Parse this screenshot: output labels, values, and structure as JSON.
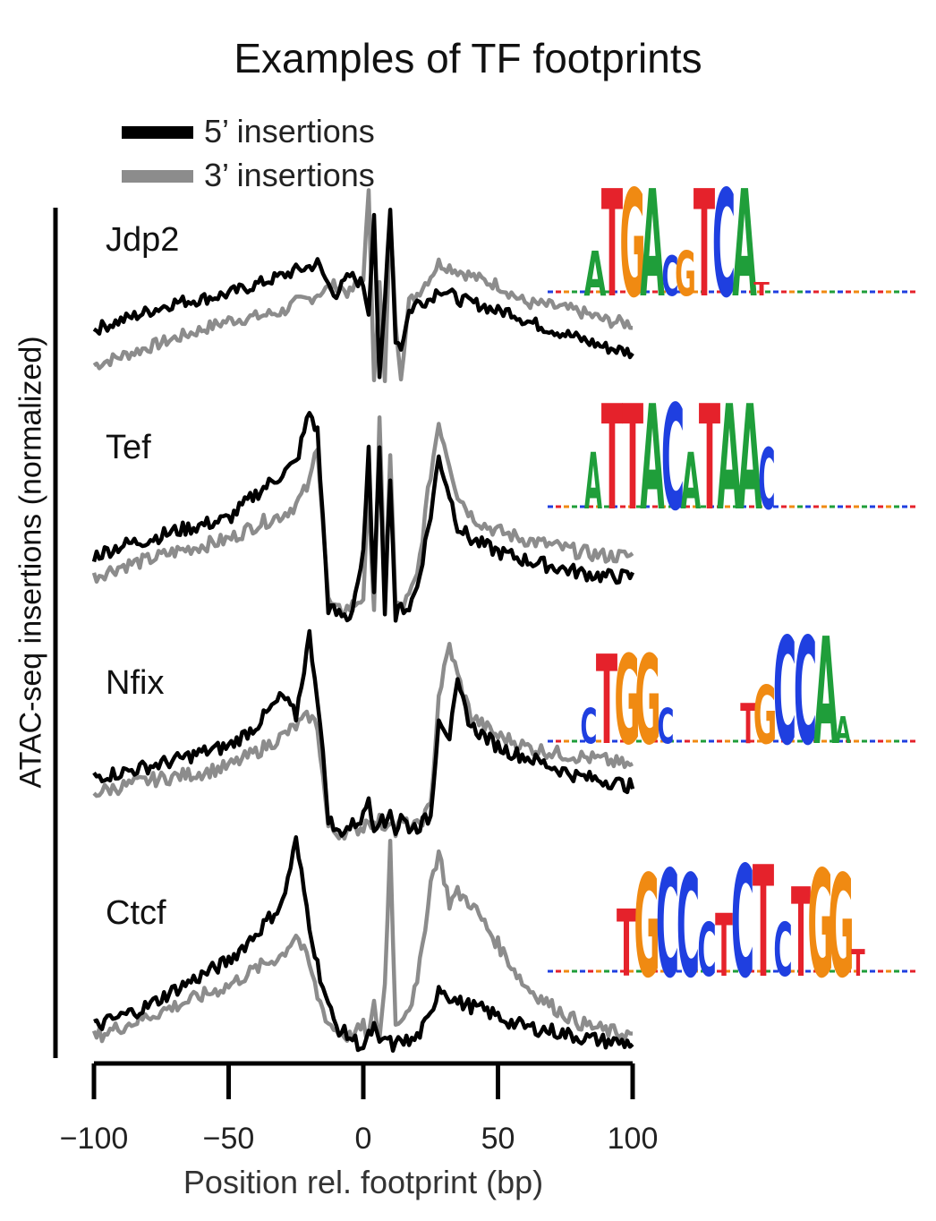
{
  "chart_data": {
    "type": "line",
    "title": "Examples of TF footprints",
    "xlabel": "Position rel. footprint (bp)",
    "ylabel": "ATAC-seq insertions (normalized)",
    "xlim": [
      -100,
      100
    ],
    "xticks": [
      -100,
      -50,
      0,
      50,
      100
    ],
    "xtick_labels": [
      "−100",
      "−50",
      "0",
      "50",
      "100"
    ],
    "grid": false,
    "legend": {
      "placement": "top-left",
      "entries": [
        {
          "name": "5’ insertions",
          "color": "#000000"
        },
        {
          "name": "3’ insertions",
          "color": "#8c8c8c"
        }
      ]
    },
    "x": [
      -100,
      -90,
      -80,
      -70,
      -60,
      -50,
      -40,
      -30,
      -25,
      -20,
      -17,
      -13,
      -10,
      -5,
      0,
      2,
      4,
      6,
      8,
      10,
      12,
      14,
      17,
      20,
      25,
      28,
      32,
      35,
      40,
      45,
      50,
      55,
      60,
      70,
      80,
      90,
      100
    ],
    "panels": [
      {
        "name": "Jdp2",
        "motif": "TGACGTCA",
        "series": [
          {
            "name": "5’ insertions",
            "values": [
              0.35,
              0.4,
              0.45,
              0.5,
              0.52,
              0.55,
              0.6,
              0.65,
              0.68,
              0.7,
              0.72,
              0.6,
              0.55,
              0.65,
              0.6,
              0.45,
              1.0,
              0.05,
              0.5,
              1.05,
              0.3,
              0.25,
              0.45,
              0.5,
              0.52,
              0.58,
              0.55,
              0.52,
              0.5,
              0.48,
              0.45,
              0.45,
              0.4,
              0.35,
              0.3,
              0.25,
              0.22
            ]
          },
          {
            "name": "3’ insertions",
            "values": [
              0.15,
              0.2,
              0.25,
              0.3,
              0.35,
              0.4,
              0.42,
              0.45,
              0.5,
              0.52,
              0.55,
              0.58,
              0.6,
              0.55,
              0.65,
              1.1,
              0.1,
              0.6,
              0.05,
              0.95,
              0.4,
              0.1,
              0.5,
              0.55,
              0.65,
              0.72,
              0.7,
              0.68,
              0.65,
              0.62,
              0.6,
              0.55,
              0.5,
              0.48,
              0.45,
              0.4,
              0.38
            ]
          }
        ]
      },
      {
        "name": "Tef",
        "motif": "TTACATAA",
        "series": [
          {
            "name": "5’ insertions",
            "values": [
              0.3,
              0.35,
              0.38,
              0.42,
              0.45,
              0.48,
              0.6,
              0.7,
              0.75,
              1.0,
              0.9,
              0.05,
              0.02,
              0.0,
              0.3,
              0.8,
              0.1,
              0.85,
              0.05,
              0.7,
              0.0,
              0.05,
              0.05,
              0.15,
              0.5,
              0.78,
              0.6,
              0.45,
              0.38,
              0.35,
              0.32,
              0.3,
              0.28,
              0.25,
              0.22,
              0.2,
              0.2
            ]
          },
          {
            "name": "3’ insertions",
            "values": [
              0.2,
              0.25,
              0.28,
              0.32,
              0.35,
              0.38,
              0.45,
              0.5,
              0.55,
              0.65,
              0.85,
              0.08,
              0.03,
              0.05,
              0.1,
              0.6,
              0.05,
              0.95,
              0.1,
              0.8,
              0.05,
              0.05,
              0.1,
              0.2,
              0.7,
              0.95,
              0.75,
              0.6,
              0.5,
              0.45,
              0.42,
              0.4,
              0.38,
              0.35,
              0.32,
              0.3,
              0.3
            ]
          }
        ]
      },
      {
        "name": "Nfix",
        "motif": "TGGC-GCCA",
        "series": [
          {
            "name": "5’ insertions",
            "values": [
              0.3,
              0.32,
              0.35,
              0.38,
              0.42,
              0.45,
              0.55,
              0.7,
              0.6,
              1.0,
              0.7,
              0.1,
              0.02,
              0.05,
              0.1,
              0.2,
              0.05,
              0.1,
              0.05,
              0.15,
              0.02,
              0.1,
              0.05,
              0.05,
              0.1,
              0.6,
              0.5,
              0.75,
              0.55,
              0.5,
              0.45,
              0.42,
              0.4,
              0.35,
              0.3,
              0.28,
              0.25
            ]
          },
          {
            "name": "3’ insertions",
            "values": [
              0.22,
              0.25,
              0.28,
              0.3,
              0.32,
              0.35,
              0.42,
              0.5,
              0.55,
              0.6,
              0.55,
              0.05,
              0.02,
              0.03,
              0.05,
              0.1,
              0.05,
              0.08,
              0.05,
              0.1,
              0.02,
              0.08,
              0.05,
              0.05,
              0.15,
              0.7,
              0.95,
              0.8,
              0.6,
              0.55,
              0.5,
              0.48,
              0.45,
              0.42,
              0.4,
              0.38,
              0.35
            ]
          }
        ]
      },
      {
        "name": "Ctcf",
        "motif": "TGCCCTCTCTGG",
        "series": [
          {
            "name": "5’ insertions",
            "values": [
              0.1,
              0.15,
              0.2,
              0.28,
              0.35,
              0.42,
              0.55,
              0.7,
              1.0,
              0.6,
              0.4,
              0.2,
              0.1,
              0.05,
              0.0,
              0.05,
              0.1,
              0.0,
              0.05,
              0.02,
              0.0,
              0.05,
              0.02,
              0.05,
              0.15,
              0.3,
              0.25,
              0.22,
              0.2,
              0.18,
              0.15,
              0.12,
              0.1,
              0.08,
              0.05,
              0.03,
              0.02
            ]
          },
          {
            "name": "3’ insertions",
            "values": [
              0.05,
              0.1,
              0.15,
              0.2,
              0.25,
              0.3,
              0.38,
              0.45,
              0.55,
              0.4,
              0.25,
              0.12,
              0.08,
              0.05,
              0.1,
              0.05,
              0.2,
              0.05,
              0.3,
              1.0,
              0.1,
              0.15,
              0.2,
              0.3,
              0.8,
              0.95,
              0.7,
              0.75,
              0.7,
              0.6,
              0.5,
              0.4,
              0.3,
              0.2,
              0.12,
              0.08,
              0.06
            ]
          }
        ]
      }
    ],
    "colors": {
      "five_prime": "#000000",
      "three_prime": "#8c8c8c"
    },
    "logo_colors": {
      "A": "#1f9e3a",
      "C": "#1f3fe0",
      "G": "#f08a12",
      "T": "#e5222b"
    }
  }
}
